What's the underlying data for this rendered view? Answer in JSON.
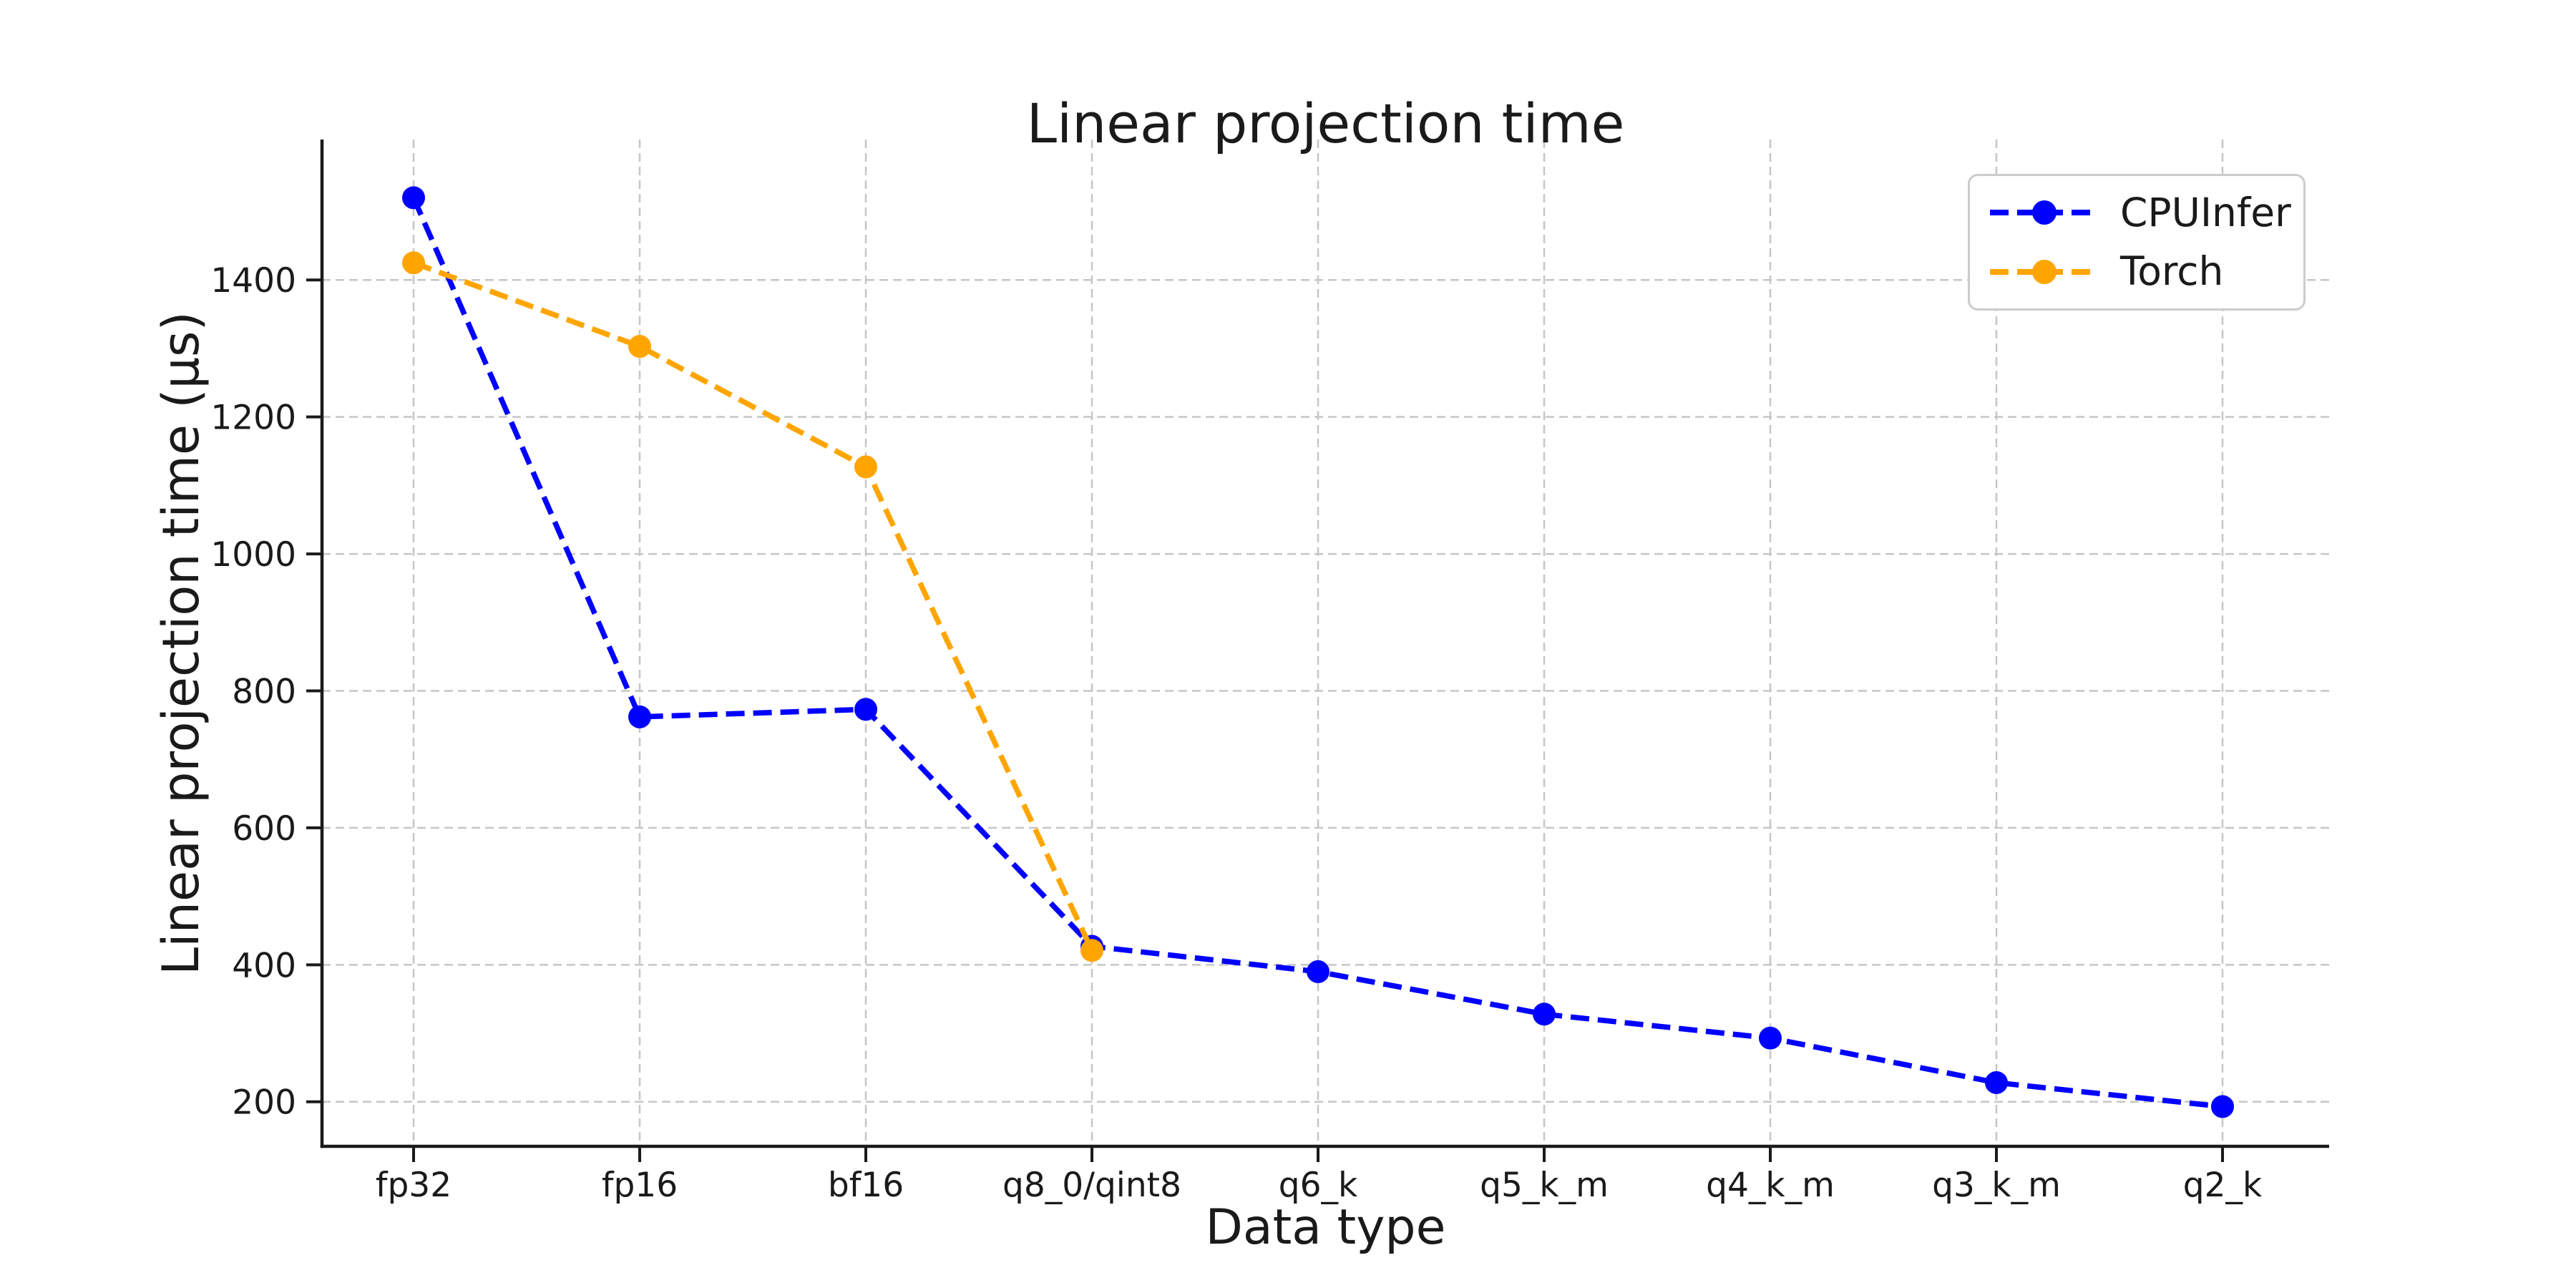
{
  "figure": {
    "background": "#ffffff"
  },
  "chart_data": {
    "type": "line",
    "title": "Linear projection time",
    "xlabel": "Data type",
    "ylabel": "Linear projection time (µs)",
    "categories": [
      "fp32",
      "fp16",
      "bf16",
      "q8_0/qint8",
      "q6_k",
      "q5_k_m",
      "q4_k_m",
      "q3_k_m",
      "q2_k"
    ],
    "series": [
      {
        "name": "CPUInfer",
        "color": "#0000ff",
        "line_style": "dashed",
        "marker": "circle",
        "values": [
          1520,
          762,
          773,
          427,
          390,
          328,
          293,
          228,
          193
        ]
      },
      {
        "name": "Torch",
        "color": "#ffa500",
        "line_style": "dashed",
        "marker": "circle",
        "values": [
          1425,
          1303,
          1127,
          421,
          null,
          null,
          null,
          null,
          null
        ]
      }
    ],
    "yticks": [
      200,
      400,
      600,
      800,
      1000,
      1200,
      1400
    ],
    "ylim": [
      135,
      1605
    ],
    "grid": true,
    "grid_style": "dashed",
    "legend_position": "upper right",
    "style": {
      "grid_color": "#c6c6c6",
      "spine_color": "#1a1a1a",
      "tick_color": "#1a1a1a",
      "text_color": "#1a1a1a",
      "legend_border_color": "#cccccc"
    }
  }
}
